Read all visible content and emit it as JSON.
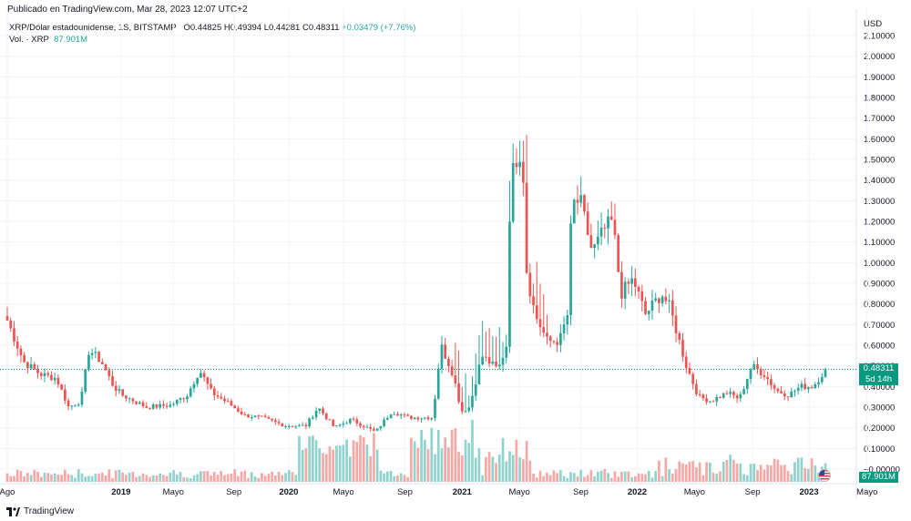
{
  "header": {
    "published": "Publicado en TradingView.com, Mar 28, 2023 12:07 UTC+2"
  },
  "legend": {
    "symbol": "XRP/Dólar estadounidense, 1S, BITSTAMP",
    "open": "O0.44825",
    "high": "H0.49394",
    "low": "L0.44281",
    "close": "C0.48311",
    "change": "+0.03479 (+7.76%)",
    "volume_label": "Vol. · XRP",
    "volume_value": "87.901M"
  },
  "axis": {
    "currency": "USD",
    "current_price": "0.48311",
    "countdown": "5d 14h",
    "current_volume": "87.901M"
  },
  "footer": {
    "brand": "TradingView"
  },
  "colors": {
    "up": "#26a69a",
    "down": "#ef5350",
    "up_volume": "#8fd3cc",
    "down_volume": "#f5a8a5",
    "badge": "#089981",
    "grid": "#f0f3fa"
  },
  "chart_data": {
    "type": "candlestick",
    "title": "XRP/Dólar estadounidense, 1S, BITSTAMP",
    "ylabel": "USD",
    "ylim": [
      -0.05,
      2.15
    ],
    "y_ticks": [
      "2.10000",
      "2.00000",
      "1.90000",
      "1.80000",
      "1.70000",
      "1.60000",
      "1.50000",
      "1.40000",
      "1.30000",
      "1.20000",
      "1.10000",
      "1.00000",
      "0.90000",
      "0.80000",
      "0.70000",
      "0.60000",
      "0.50000",
      "0.40000",
      "0.30000",
      "0.20000",
      "0.10000",
      "−0.00000"
    ],
    "y_tick_values": [
      2.1,
      2.0,
      1.9,
      1.8,
      1.7,
      1.6,
      1.5,
      1.4,
      1.3,
      1.2,
      1.1,
      1.0,
      0.9,
      0.8,
      0.7,
      0.6,
      0.5,
      0.4,
      0.3,
      0.2,
      0.1,
      0.0
    ],
    "x_ticks": [
      {
        "label": "Ago",
        "t": 0.0
      },
      {
        "label": "2019",
        "t": 0.139
      },
      {
        "label": "Mayo",
        "t": 0.203
      },
      {
        "label": "Sep",
        "t": 0.277
      },
      {
        "label": "2020",
        "t": 0.344
      },
      {
        "label": "Mayo",
        "t": 0.411
      },
      {
        "label": "Sep",
        "t": 0.486
      },
      {
        "label": "2021",
        "t": 0.556
      },
      {
        "label": "Mayo",
        "t": 0.626
      },
      {
        "label": "Sep",
        "t": 0.701
      },
      {
        "label": "2022",
        "t": 0.77
      },
      {
        "label": "Mayo",
        "t": 0.84
      },
      {
        "label": "Sep",
        "t": 0.911
      },
      {
        "label": "2023",
        "t": 0.98
      },
      {
        "label": "Mayo",
        "t": 1.051
      }
    ],
    "series": [
      {
        "name": "XRP/USD",
        "anchors": [
          [
            0.0,
            0.72
          ],
          [
            0.02,
            0.52
          ],
          [
            0.04,
            0.46
          ],
          [
            0.06,
            0.44
          ],
          [
            0.075,
            0.3
          ],
          [
            0.09,
            0.33
          ],
          [
            0.1,
            0.58
          ],
          [
            0.115,
            0.52
          ],
          [
            0.13,
            0.4
          ],
          [
            0.14,
            0.36
          ],
          [
            0.17,
            0.3
          ],
          [
            0.2,
            0.31
          ],
          [
            0.22,
            0.36
          ],
          [
            0.235,
            0.48
          ],
          [
            0.25,
            0.37
          ],
          [
            0.27,
            0.32
          ],
          [
            0.29,
            0.26
          ],
          [
            0.31,
            0.25
          ],
          [
            0.34,
            0.21
          ],
          [
            0.365,
            0.21
          ],
          [
            0.38,
            0.3
          ],
          [
            0.4,
            0.2
          ],
          [
            0.42,
            0.24
          ],
          [
            0.45,
            0.18
          ],
          [
            0.47,
            0.28
          ],
          [
            0.49,
            0.25
          ],
          [
            0.52,
            0.25
          ],
          [
            0.53,
            0.6
          ],
          [
            0.545,
            0.46
          ],
          [
            0.555,
            0.28
          ],
          [
            0.565,
            0.3
          ],
          [
            0.58,
            0.55
          ],
          [
            0.6,
            0.48
          ],
          [
            0.61,
            0.6
          ],
          [
            0.615,
            1.38
          ],
          [
            0.625,
            1.56
          ],
          [
            0.63,
            1.5
          ],
          [
            0.635,
            0.95
          ],
          [
            0.645,
            0.75
          ],
          [
            0.66,
            0.62
          ],
          [
            0.675,
            0.62
          ],
          [
            0.685,
            0.75
          ],
          [
            0.69,
            1.28
          ],
          [
            0.7,
            1.3
          ],
          [
            0.715,
            1.05
          ],
          [
            0.73,
            1.16
          ],
          [
            0.74,
            1.2
          ],
          [
            0.75,
            0.85
          ],
          [
            0.765,
            0.92
          ],
          [
            0.78,
            0.75
          ],
          [
            0.8,
            0.85
          ],
          [
            0.81,
            0.78
          ],
          [
            0.83,
            0.5
          ],
          [
            0.845,
            0.35
          ],
          [
            0.86,
            0.33
          ],
          [
            0.88,
            0.37
          ],
          [
            0.895,
            0.34
          ],
          [
            0.91,
            0.5
          ],
          [
            0.925,
            0.46
          ],
          [
            0.94,
            0.38
          ],
          [
            0.955,
            0.36
          ],
          [
            0.97,
            0.4
          ],
          [
            0.985,
            0.4
          ],
          [
            1.0,
            0.483
          ]
        ]
      }
    ],
    "volume_unit": "XRP",
    "last_volume": "87.901M"
  }
}
